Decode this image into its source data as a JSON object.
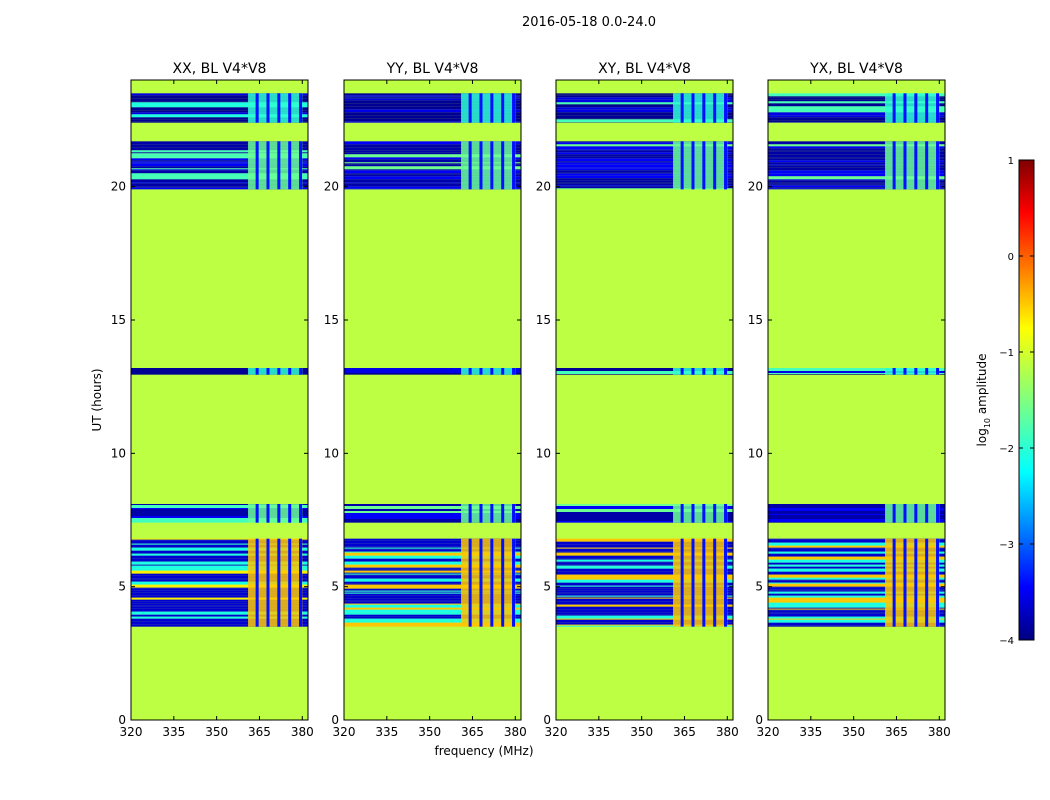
{
  "chart_data": {
    "type": "heatmap",
    "title": "2016-05-18 0.0-24.0",
    "xlabel": "frequency (MHz)",
    "ylabel": "UT (hours)",
    "xlim": [
      320,
      382
    ],
    "ylim": [
      0,
      24
    ],
    "xticks": [
      320,
      335,
      350,
      365,
      380
    ],
    "yticks": [
      0,
      5,
      10,
      15,
      20
    ],
    "panels": [
      {
        "title": "XX, BL V4*V8",
        "name": "xx"
      },
      {
        "title": "YY, BL V4*V8",
        "name": "yy"
      },
      {
        "title": "XY, BL V4*V8",
        "name": "xy"
      },
      {
        "title": "YX, BL V4*V8",
        "name": "yx"
      }
    ],
    "background_value": -1.2,
    "data_blocks": [
      {
        "ut_start": 3.5,
        "ut_end": 6.8,
        "level": "strong"
      },
      {
        "ut_start": 7.4,
        "ut_end": 8.1,
        "level": "medium"
      },
      {
        "ut_start": 12.95,
        "ut_end": 13.2,
        "level": "weak"
      },
      {
        "ut_start": 19.9,
        "ut_end": 21.7,
        "level": "medium"
      },
      {
        "ut_start": 22.4,
        "ut_end": 23.5,
        "level": "weak"
      }
    ],
    "rfi_freq_range_mhz": [
      361,
      380
    ],
    "colorbar": {
      "label": "log10 amplitude",
      "label_main": "log",
      "label_sub": "10",
      "label_rest": " amplitude",
      "vmin": -4,
      "vmax": 1,
      "ticks": [
        "1",
        "0",
        "−1",
        "−2",
        "−3",
        "−4"
      ],
      "tick_values": [
        1,
        0,
        -1,
        -2,
        -3,
        -4
      ],
      "colormap": "jet"
    }
  }
}
